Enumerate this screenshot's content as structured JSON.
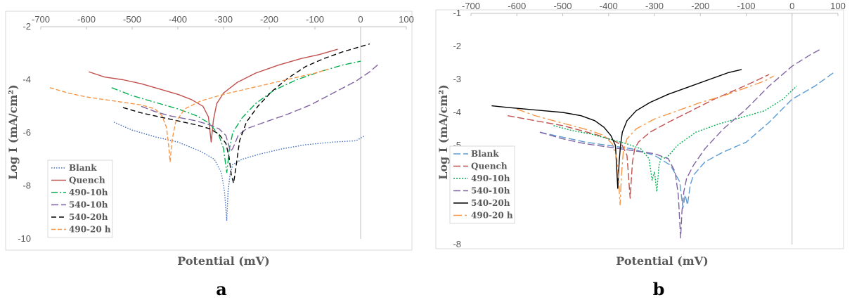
{
  "chart_data": [
    {
      "id": "a",
      "type": "line",
      "panel_label": "a",
      "xlabel": "Potential (mV)",
      "ylabel": "Log I (mA/cm²)",
      "xlim": [
        -700,
        100
      ],
      "ylim": [
        -10,
        -2
      ],
      "x_ticks": [
        -700,
        -600,
        -500,
        -400,
        -300,
        -200,
        -100,
        0,
        100
      ],
      "x_tick_labels": [
        "-700",
        "-600",
        "-500",
        "-400",
        "-300",
        "-200",
        "-100",
        "0",
        "100"
      ],
      "y_ticks": [
        -10,
        -8,
        -6,
        -4,
        -2
      ],
      "y_tick_labels": [
        "-10",
        "-8",
        "-6",
        "-4",
        "-2"
      ],
      "x_axis_at_top": true,
      "grid": false,
      "legend_position": "bottom-left",
      "colors": {
        "Blank": "#4472c4",
        "Quench": "#c0504d",
        "490-10h": "#00b050",
        "540-10h": "#8064a2",
        "540-20h": "#000000",
        "490-20 h": "#f79646"
      },
      "series": [
        {
          "name": "Blank",
          "color": "#4472c4",
          "dash": "1.5,2",
          "x": [
            -540,
            -500,
            -450,
            -400,
            -350,
            -320,
            -305,
            -298,
            -293,
            -290,
            -286,
            -280,
            -260,
            -220,
            -170,
            -120,
            -60,
            -10,
            10
          ],
          "y": [
            -5.6,
            -5.9,
            -6.15,
            -6.35,
            -6.7,
            -7.0,
            -7.5,
            -8.2,
            -9.3,
            -8.2,
            -7.6,
            -7.2,
            -7.0,
            -6.8,
            -6.6,
            -6.45,
            -6.35,
            -6.3,
            -6.1
          ]
        },
        {
          "name": "Quench",
          "color": "#c0504d",
          "dash": "",
          "x": [
            -595,
            -560,
            -520,
            -480,
            -440,
            -400,
            -370,
            -345,
            -333,
            -327,
            -322,
            -315,
            -300,
            -270,
            -230,
            -180,
            -130,
            -90,
            -50
          ],
          "y": [
            -3.7,
            -3.9,
            -4.0,
            -4.15,
            -4.35,
            -4.55,
            -4.75,
            -5.0,
            -5.4,
            -6.35,
            -5.5,
            -4.9,
            -4.5,
            -4.1,
            -3.75,
            -3.45,
            -3.2,
            -3.05,
            -2.85
          ]
        },
        {
          "name": "490-10h",
          "color": "#00b050",
          "dash": "9,3,2,3",
          "x": [
            -545,
            -500,
            -450,
            -400,
            -360,
            -330,
            -310,
            -300,
            -293,
            -287,
            -280,
            -260,
            -230,
            -190,
            -140,
            -90,
            -40,
            0
          ],
          "y": [
            -4.3,
            -4.6,
            -4.85,
            -5.1,
            -5.35,
            -5.65,
            -6.1,
            -6.6,
            -7.5,
            -6.6,
            -6.0,
            -5.45,
            -4.9,
            -4.4,
            -4.0,
            -3.7,
            -3.45,
            -3.3
          ]
        },
        {
          "name": "540-10h",
          "color": "#8064a2",
          "dash": "10,4",
          "x": [
            -480,
            -450,
            -420,
            -390,
            -360,
            -330,
            -310,
            -295,
            -285,
            -280,
            -275,
            -268,
            -250,
            -210,
            -160,
            -110,
            -60,
            -10,
            20,
            40
          ],
          "y": [
            -5.0,
            -5.2,
            -5.35,
            -5.45,
            -5.55,
            -5.7,
            -5.85,
            -6.1,
            -6.7,
            -6.6,
            -6.4,
            -6.1,
            -5.85,
            -5.6,
            -5.3,
            -4.95,
            -4.5,
            -4.05,
            -3.7,
            -3.4
          ]
        },
        {
          "name": "540-20h",
          "color": "#000000",
          "dash": "7,4",
          "x": [
            -520,
            -480,
            -440,
            -400,
            -360,
            -330,
            -310,
            -295,
            -288,
            -283,
            -278,
            -272,
            -265,
            -250,
            -225,
            -195,
            -160,
            -120,
            -80,
            -40,
            0,
            20
          ],
          "y": [
            -5.05,
            -5.25,
            -5.4,
            -5.55,
            -5.7,
            -5.85,
            -6.05,
            -6.4,
            -6.9,
            -7.6,
            -7.9,
            -7.2,
            -6.3,
            -5.6,
            -5.0,
            -4.45,
            -3.95,
            -3.5,
            -3.2,
            -2.95,
            -2.75,
            -2.65
          ]
        },
        {
          "name": "490-20 h",
          "color": "#f79646",
          "dash": "6,3",
          "x": [
            -680,
            -640,
            -600,
            -560,
            -520,
            -480,
            -450,
            -435,
            -425,
            -420,
            -417,
            -413,
            -405,
            -385,
            -350,
            -300,
            -250,
            -200,
            -150,
            -100,
            -70
          ],
          "y": [
            -4.3,
            -4.5,
            -4.65,
            -4.75,
            -4.85,
            -4.95,
            -5.1,
            -5.35,
            -5.8,
            -6.5,
            -7.1,
            -6.3,
            -5.6,
            -5.1,
            -4.8,
            -4.55,
            -4.35,
            -4.15,
            -3.95,
            -3.75,
            -3.6
          ]
        }
      ]
    },
    {
      "id": "b",
      "type": "line",
      "panel_label": "b",
      "xlabel": "Potential (mV)",
      "ylabel": "Log I (mA/cm²)",
      "xlim": [
        -700,
        100
      ],
      "ylim": [
        -8,
        -1
      ],
      "x_ticks": [
        -700,
        -600,
        -500,
        -400,
        -300,
        -200,
        -100,
        0,
        100
      ],
      "x_tick_labels": [
        "-700",
        "-600",
        "-500",
        "-400",
        "-300",
        "-200",
        "-100",
        "0",
        "100"
      ],
      "y_ticks": [
        -8,
        -7,
        -6,
        -5,
        -4,
        -3,
        -2,
        -1
      ],
      "y_tick_labels": [
        "-8",
        "-7",
        "-6",
        "-5",
        "-4",
        "-3",
        "-2",
        "-1"
      ],
      "x_axis_at_top": true,
      "grid": false,
      "legend_position": "bottom-left",
      "colors": {
        "Blank": "#5b9bd5",
        "Quench": "#c0504d",
        "490-10h": "#00b050",
        "540-10h": "#8064a2",
        "540-20h": "#000000",
        "490-20 h": "#f79646"
      },
      "series": [
        {
          "name": "Blank",
          "color": "#5b9bd5",
          "dash": "10,4",
          "x": [
            -550,
            -500,
            -450,
            -400,
            -350,
            -300,
            -265,
            -245,
            -238,
            -233,
            -228,
            -222,
            -215,
            -190,
            -150,
            -100,
            -50,
            0,
            50,
            90
          ],
          "y": [
            -4.6,
            -4.75,
            -4.9,
            -5.0,
            -5.1,
            -5.3,
            -5.6,
            -6.1,
            -6.9,
            -6.5,
            -6.8,
            -6.2,
            -5.9,
            -5.5,
            -5.2,
            -4.9,
            -4.3,
            -3.6,
            -3.2,
            -2.8
          ]
        },
        {
          "name": "Quench",
          "color": "#c0504d",
          "dash": "10,4",
          "x": [
            -620,
            -580,
            -540,
            -500,
            -460,
            -420,
            -390,
            -370,
            -360,
            -353,
            -348,
            -343,
            -335,
            -310,
            -270,
            -220,
            -170,
            -120,
            -80,
            -50
          ],
          "y": [
            -4.1,
            -4.2,
            -4.3,
            -4.4,
            -4.55,
            -4.7,
            -4.85,
            -5.0,
            -5.3,
            -6.6,
            -5.5,
            -5.1,
            -4.9,
            -4.6,
            -4.3,
            -3.95,
            -3.6,
            -3.3,
            -3.05,
            -2.85
          ]
        },
        {
          "name": "490-10h",
          "color": "#00b050",
          "dash": "2,2",
          "x": [
            -520,
            -480,
            -440,
            -400,
            -360,
            -330,
            -312,
            -305,
            -300,
            -295,
            -290,
            -285,
            -275,
            -250,
            -210,
            -160,
            -110,
            -60,
            -20,
            10
          ],
          "y": [
            -4.4,
            -4.55,
            -4.65,
            -4.8,
            -4.95,
            -5.1,
            -5.4,
            -6.05,
            -5.8,
            -6.4,
            -5.6,
            -5.35,
            -5.4,
            -5.0,
            -4.6,
            -4.35,
            -4.15,
            -3.95,
            -3.6,
            -3.2
          ]
        },
        {
          "name": "540-10h",
          "color": "#8064a2",
          "dash": "10,4",
          "x": [
            -550,
            -500,
            -450,
            -400,
            -350,
            -300,
            -270,
            -255,
            -248,
            -243,
            -240,
            -236,
            -230,
            -215,
            -190,
            -150,
            -100,
            -50,
            0,
            40,
            60
          ],
          "y": [
            -4.6,
            -4.8,
            -4.95,
            -5.05,
            -5.15,
            -5.25,
            -5.4,
            -5.8,
            -6.5,
            -7.8,
            -7.0,
            -6.4,
            -6.0,
            -5.6,
            -5.1,
            -4.5,
            -3.9,
            -3.2,
            -2.6,
            -2.25,
            -2.1
          ]
        },
        {
          "name": "540-20h",
          "color": "#000000",
          "dash": "",
          "x": [
            -655,
            -620,
            -580,
            -540,
            -500,
            -460,
            -430,
            -410,
            -395,
            -385,
            -380,
            -377,
            -374,
            -370,
            -360,
            -340,
            -310,
            -270,
            -230,
            -180,
            -140,
            -110
          ],
          "y": [
            -3.8,
            -3.85,
            -3.9,
            -3.95,
            -4.0,
            -4.1,
            -4.25,
            -4.45,
            -4.7,
            -5.0,
            -6.3,
            -5.5,
            -5.0,
            -4.6,
            -4.25,
            -3.95,
            -3.7,
            -3.45,
            -3.25,
            -3.0,
            -2.8,
            -2.7
          ]
        },
        {
          "name": "490-20 h",
          "color": "#f79646",
          "dash": "12,4,3,4",
          "x": [
            -600,
            -560,
            -520,
            -480,
            -440,
            -410,
            -392,
            -382,
            -378,
            -375,
            -372,
            -368,
            -360,
            -340,
            -300,
            -250,
            -200,
            -150,
            -100,
            -60,
            -40
          ],
          "y": [
            -3.9,
            -4.1,
            -4.25,
            -4.4,
            -4.55,
            -4.7,
            -4.95,
            -5.4,
            -6.1,
            -6.8,
            -5.9,
            -5.2,
            -4.8,
            -4.5,
            -4.2,
            -3.95,
            -3.7,
            -3.5,
            -3.25,
            -3.05,
            -2.9
          ]
        }
      ]
    }
  ]
}
